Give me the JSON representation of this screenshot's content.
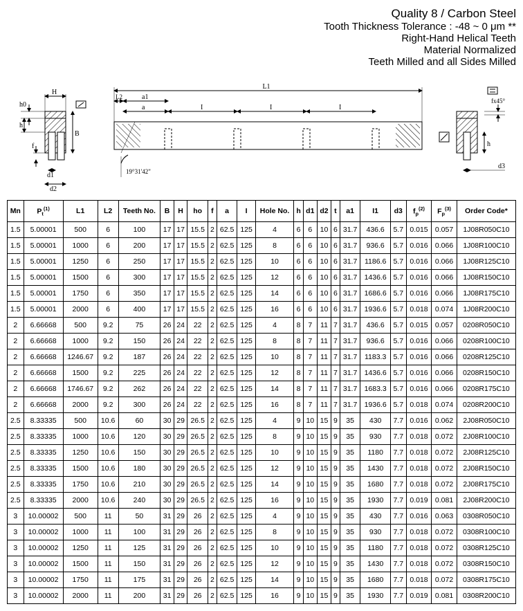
{
  "header": {
    "line1": "Quality 8  /  Carbon Steel",
    "line2_pre": "Tooth Thickness Tolerance : -48 ~ 0 ",
    "line2_unit": "μm",
    "line2_post": " **",
    "line3": "Right-Hand Helical Teeth",
    "line4": "Material Normalized",
    "line5": "Teeth Milled and all Sides Milled"
  },
  "diagram": {
    "labels": {
      "H": "H",
      "h0": "h0",
      "h": "h",
      "f": "f",
      "B": "B",
      "d1": "d1",
      "d2": "d2",
      "L1": "L1",
      "L2": "L2",
      "a": "a",
      "a1": "a1",
      "I": "I",
      "d3": "d3",
      "fx45": "fx45°",
      "angle": "19°31'42\""
    }
  },
  "table": {
    "columns": [
      "Mn",
      "P<sub>t</sub><sup>(1)</sup>",
      "L1",
      "L2",
      "Teeth No.",
      "B",
      "H",
      "ho",
      "f",
      "a",
      "I",
      "Hole No.",
      "h",
      "d1",
      "d2",
      "t",
      "a1",
      "I1",
      "d3",
      "f<sub>p</sub><sup>(2)</sup>",
      "F<sub>p</sub><sup>(3)</sup>",
      "Order Code*"
    ],
    "rows": [
      [
        "1.5",
        "5.00001",
        "500",
        "6",
        "100",
        "17",
        "17",
        "15.5",
        "2",
        "62.5",
        "125",
        "4",
        "6",
        "6",
        "10",
        "6",
        "31.7",
        "436.6",
        "5.7",
        "0.015",
        "0.057",
        "1J08R050C10"
      ],
      [
        "1.5",
        "5.00001",
        "1000",
        "6",
        "200",
        "17",
        "17",
        "15.5",
        "2",
        "62.5",
        "125",
        "8",
        "6",
        "6",
        "10",
        "6",
        "31.7",
        "936.6",
        "5.7",
        "0.016",
        "0.066",
        "1J08R100C10"
      ],
      [
        "1.5",
        "5.00001",
        "1250",
        "6",
        "250",
        "17",
        "17",
        "15.5",
        "2",
        "62.5",
        "125",
        "10",
        "6",
        "6",
        "10",
        "6",
        "31.7",
        "1186.6",
        "5.7",
        "0.016",
        "0.066",
        "1J08R125C10"
      ],
      [
        "1.5",
        "5.00001",
        "1500",
        "6",
        "300",
        "17",
        "17",
        "15.5",
        "2",
        "62.5",
        "125",
        "12",
        "6",
        "6",
        "10",
        "6",
        "31.7",
        "1436.6",
        "5.7",
        "0.016",
        "0.066",
        "1J08R150C10"
      ],
      [
        "1.5",
        "5.00001",
        "1750",
        "6",
        "350",
        "17",
        "17",
        "15.5",
        "2",
        "62.5",
        "125",
        "14",
        "6",
        "6",
        "10",
        "6",
        "31.7",
        "1686.6",
        "5.7",
        "0.016",
        "0.066",
        "1J08R175C10"
      ],
      [
        "1.5",
        "5.00001",
        "2000",
        "6",
        "400",
        "17",
        "17",
        "15.5",
        "2",
        "62.5",
        "125",
        "16",
        "6",
        "6",
        "10",
        "6",
        "31.7",
        "1936.6",
        "5.7",
        "0.018",
        "0.074",
        "1J08R200C10"
      ],
      [
        "2",
        "6.66668",
        "500",
        "9.2",
        "75",
        "26",
        "24",
        "22",
        "2",
        "62.5",
        "125",
        "4",
        "8",
        "7",
        "11",
        "7",
        "31.7",
        "436.6",
        "5.7",
        "0.015",
        "0.057",
        "0208R050C10"
      ],
      [
        "2",
        "6.66668",
        "1000",
        "9.2",
        "150",
        "26",
        "24",
        "22",
        "2",
        "62.5",
        "125",
        "8",
        "8",
        "7",
        "11",
        "7",
        "31.7",
        "936.6",
        "5.7",
        "0.016",
        "0.066",
        "0208R100C10"
      ],
      [
        "2",
        "6.66668",
        "1246.67",
        "9.2",
        "187",
        "26",
        "24",
        "22",
        "2",
        "62.5",
        "125",
        "10",
        "8",
        "7",
        "11",
        "7",
        "31.7",
        "1183.3",
        "5.7",
        "0.016",
        "0.066",
        "0208R125C10"
      ],
      [
        "2",
        "6.66668",
        "1500",
        "9.2",
        "225",
        "26",
        "24",
        "22",
        "2",
        "62.5",
        "125",
        "12",
        "8",
        "7",
        "11",
        "7",
        "31.7",
        "1436.6",
        "5.7",
        "0.016",
        "0.066",
        "0208R150C10"
      ],
      [
        "2",
        "6.66668",
        "1746.67",
        "9.2",
        "262",
        "26",
        "24",
        "22",
        "2",
        "62.5",
        "125",
        "14",
        "8",
        "7",
        "11",
        "7",
        "31.7",
        "1683.3",
        "5.7",
        "0.016",
        "0.066",
        "0208R175C10"
      ],
      [
        "2",
        "6.66668",
        "2000",
        "9.2",
        "300",
        "26",
        "24",
        "22",
        "2",
        "62.5",
        "125",
        "16",
        "8",
        "7",
        "11",
        "7",
        "31.7",
        "1936.6",
        "5.7",
        "0.018",
        "0.074",
        "0208R200C10"
      ],
      [
        "2.5",
        "8.33335",
        "500",
        "10.6",
        "60",
        "30",
        "29",
        "26.5",
        "2",
        "62.5",
        "125",
        "4",
        "9",
        "10",
        "15",
        "9",
        "35",
        "430",
        "7.7",
        "0.016",
        "0.062",
        "2J08R050C10"
      ],
      [
        "2.5",
        "8.33335",
        "1000",
        "10.6",
        "120",
        "30",
        "29",
        "26.5",
        "2",
        "62.5",
        "125",
        "8",
        "9",
        "10",
        "15",
        "9",
        "35",
        "930",
        "7.7",
        "0.018",
        "0.072",
        "2J08R100C10"
      ],
      [
        "2.5",
        "8.33335",
        "1250",
        "10.6",
        "150",
        "30",
        "29",
        "26.5",
        "2",
        "62.5",
        "125",
        "10",
        "9",
        "10",
        "15",
        "9",
        "35",
        "1180",
        "7.7",
        "0.018",
        "0.072",
        "2J08R125C10"
      ],
      [
        "2.5",
        "8.33335",
        "1500",
        "10.6",
        "180",
        "30",
        "29",
        "26.5",
        "2",
        "62.5",
        "125",
        "12",
        "9",
        "10",
        "15",
        "9",
        "35",
        "1430",
        "7.7",
        "0.018",
        "0.072",
        "2J08R150C10"
      ],
      [
        "2.5",
        "8.33335",
        "1750",
        "10.6",
        "210",
        "30",
        "29",
        "26.5",
        "2",
        "62.5",
        "125",
        "14",
        "9",
        "10",
        "15",
        "9",
        "35",
        "1680",
        "7.7",
        "0.018",
        "0.072",
        "2J08R175C10"
      ],
      [
        "2.5",
        "8.33335",
        "2000",
        "10.6",
        "240",
        "30",
        "29",
        "26.5",
        "2",
        "62.5",
        "125",
        "16",
        "9",
        "10",
        "15",
        "9",
        "35",
        "1930",
        "7.7",
        "0.019",
        "0.081",
        "2J08R200C10"
      ],
      [
        "3",
        "10.00002",
        "500",
        "11",
        "50",
        "31",
        "29",
        "26",
        "2",
        "62.5",
        "125",
        "4",
        "9",
        "10",
        "15",
        "9",
        "35",
        "430",
        "7.7",
        "0.016",
        "0.063",
        "0308R050C10"
      ],
      [
        "3",
        "10.00002",
        "1000",
        "11",
        "100",
        "31",
        "29",
        "26",
        "2",
        "62.5",
        "125",
        "8",
        "9",
        "10",
        "15",
        "9",
        "35",
        "930",
        "7.7",
        "0.018",
        "0.072",
        "0308R100C10"
      ],
      [
        "3",
        "10.00002",
        "1250",
        "11",
        "125",
        "31",
        "29",
        "26",
        "2",
        "62.5",
        "125",
        "10",
        "9",
        "10",
        "15",
        "9",
        "35",
        "1180",
        "7.7",
        "0.018",
        "0.072",
        "0308R125C10"
      ],
      [
        "3",
        "10.00002",
        "1500",
        "11",
        "150",
        "31",
        "29",
        "26",
        "2",
        "62.5",
        "125",
        "12",
        "9",
        "10",
        "15",
        "9",
        "35",
        "1430",
        "7.7",
        "0.018",
        "0.072",
        "0308R150C10"
      ],
      [
        "3",
        "10.00002",
        "1750",
        "11",
        "175",
        "31",
        "29",
        "26",
        "2",
        "62.5",
        "125",
        "14",
        "9",
        "10",
        "15",
        "9",
        "35",
        "1680",
        "7.7",
        "0.018",
        "0.072",
        "0308R175C10"
      ],
      [
        "3",
        "10.00002",
        "2000",
        "11",
        "200",
        "31",
        "29",
        "26",
        "2",
        "62.5",
        "125",
        "16",
        "9",
        "10",
        "15",
        "9",
        "35",
        "1930",
        "7.7",
        "0.019",
        "0.081",
        "0308R200C10"
      ]
    ]
  }
}
